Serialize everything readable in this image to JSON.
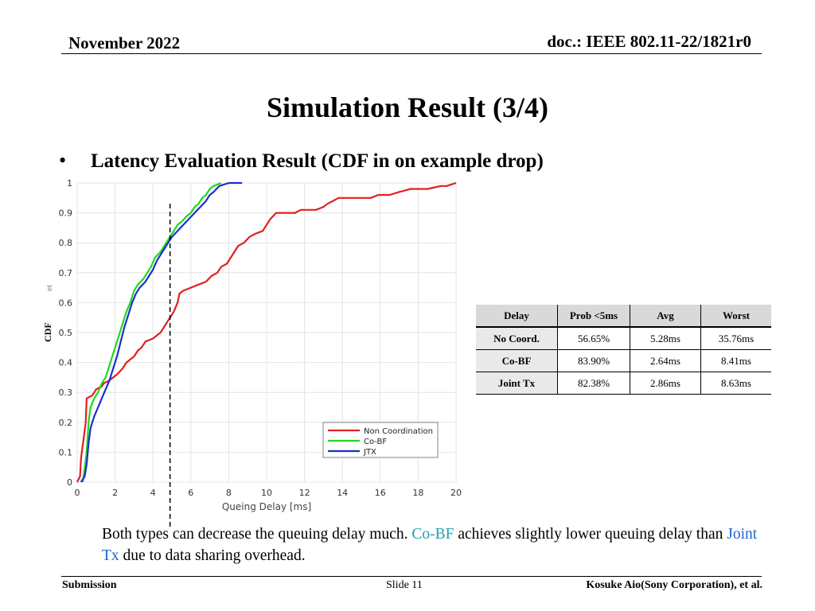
{
  "header": {
    "date": "November 2022",
    "doc": "doc.: IEEE 802.11-22/1821r0"
  },
  "title": "Simulation Result (3/4)",
  "bullet": {
    "marker": "•",
    "text": "Latency Evaluation Result (CDF in on example drop)"
  },
  "chart_data": {
    "type": "line",
    "xlabel": "Queing Delay [ms]",
    "ylabel": "CDF",
    "ylabel_faint": "et",
    "xlim": [
      0,
      20
    ],
    "ylim": [
      0,
      1
    ],
    "xticks": [
      0,
      2,
      4,
      6,
      8,
      10,
      12,
      14,
      16,
      18,
      20
    ],
    "yticks": [
      0,
      0.1,
      0.2,
      0.3,
      0.4,
      0.5,
      0.6,
      0.7,
      0.8,
      0.9,
      1
    ],
    "grid": true,
    "legend_position": "bottom-right",
    "reference_line_x": 4.9,
    "series": [
      {
        "name": "Non Coordination",
        "color": "#e02020",
        "points": [
          [
            0,
            0
          ],
          [
            0.15,
            0.02
          ],
          [
            0.2,
            0.08
          ],
          [
            0.35,
            0.15
          ],
          [
            0.45,
            0.2
          ],
          [
            0.5,
            0.28
          ],
          [
            0.8,
            0.29
          ],
          [
            1,
            0.31
          ],
          [
            1.3,
            0.32
          ],
          [
            1.4,
            0.33
          ],
          [
            1.7,
            0.34
          ],
          [
            1.9,
            0.35
          ],
          [
            2.1,
            0.36
          ],
          [
            2.4,
            0.38
          ],
          [
            2.6,
            0.4
          ],
          [
            3,
            0.42
          ],
          [
            3.2,
            0.44
          ],
          [
            3.4,
            0.45
          ],
          [
            3.6,
            0.47
          ],
          [
            4,
            0.48
          ],
          [
            4.4,
            0.5
          ],
          [
            4.6,
            0.52
          ],
          [
            4.9,
            0.55
          ],
          [
            5.1,
            0.57
          ],
          [
            5.3,
            0.6
          ],
          [
            5.4,
            0.63
          ],
          [
            5.6,
            0.64
          ],
          [
            6,
            0.65
          ],
          [
            6.4,
            0.66
          ],
          [
            6.8,
            0.67
          ],
          [
            7.1,
            0.69
          ],
          [
            7.4,
            0.7
          ],
          [
            7.6,
            0.72
          ],
          [
            7.9,
            0.73
          ],
          [
            8.1,
            0.75
          ],
          [
            8.3,
            0.77
          ],
          [
            8.5,
            0.79
          ],
          [
            8.8,
            0.8
          ],
          [
            9.1,
            0.82
          ],
          [
            9.4,
            0.83
          ],
          [
            9.8,
            0.84
          ],
          [
            10,
            0.86
          ],
          [
            10.2,
            0.88
          ],
          [
            10.5,
            0.9
          ],
          [
            11,
            0.9
          ],
          [
            11.5,
            0.9
          ],
          [
            11.8,
            0.91
          ],
          [
            12.6,
            0.91
          ],
          [
            13,
            0.92
          ],
          [
            13.2,
            0.93
          ],
          [
            13.5,
            0.94
          ],
          [
            13.8,
            0.95
          ],
          [
            15,
            0.95
          ],
          [
            15.5,
            0.95
          ],
          [
            15.9,
            0.96
          ],
          [
            16.5,
            0.96
          ],
          [
            17,
            0.97
          ],
          [
            17.6,
            0.98
          ],
          [
            18.5,
            0.98
          ],
          [
            19.2,
            0.99
          ],
          [
            19.5,
            0.99
          ],
          [
            20,
            1
          ]
        ]
      },
      {
        "name": "Co-BF",
        "color": "#1fd81f",
        "points": [
          [
            0.3,
            0
          ],
          [
            0.4,
            0.05
          ],
          [
            0.5,
            0.1
          ],
          [
            0.6,
            0.2
          ],
          [
            0.7,
            0.25
          ],
          [
            0.9,
            0.28
          ],
          [
            1.1,
            0.3
          ],
          [
            1.3,
            0.33
          ],
          [
            1.5,
            0.35
          ],
          [
            1.6,
            0.37
          ],
          [
            1.8,
            0.41
          ],
          [
            2,
            0.45
          ],
          [
            2.2,
            0.49
          ],
          [
            2.4,
            0.53
          ],
          [
            2.6,
            0.57
          ],
          [
            2.8,
            0.6
          ],
          [
            3,
            0.64
          ],
          [
            3.2,
            0.66
          ],
          [
            3.5,
            0.68
          ],
          [
            3.7,
            0.7
          ],
          [
            3.9,
            0.72
          ],
          [
            4.1,
            0.75
          ],
          [
            4.4,
            0.77
          ],
          [
            4.7,
            0.8
          ],
          [
            4.9,
            0.82
          ],
          [
            5.1,
            0.84
          ],
          [
            5.3,
            0.86
          ],
          [
            5.5,
            0.87
          ],
          [
            5.8,
            0.89
          ],
          [
            6,
            0.9
          ],
          [
            6.2,
            0.92
          ],
          [
            6.4,
            0.93
          ],
          [
            6.6,
            0.95
          ],
          [
            6.8,
            0.96
          ],
          [
            7,
            0.98
          ],
          [
            7.2,
            0.99
          ],
          [
            7.6,
            1
          ]
        ]
      },
      {
        "name": "JTX",
        "color": "#1a2fd0",
        "points": [
          [
            0.2,
            0
          ],
          [
            0.4,
            0.02
          ],
          [
            0.5,
            0.06
          ],
          [
            0.6,
            0.13
          ],
          [
            0.7,
            0.18
          ],
          [
            0.8,
            0.2
          ],
          [
            0.9,
            0.22
          ],
          [
            1.1,
            0.25
          ],
          [
            1.3,
            0.28
          ],
          [
            1.5,
            0.31
          ],
          [
            1.7,
            0.34
          ],
          [
            1.9,
            0.38
          ],
          [
            2.1,
            0.42
          ],
          [
            2.3,
            0.47
          ],
          [
            2.5,
            0.52
          ],
          [
            2.7,
            0.56
          ],
          [
            2.9,
            0.6
          ],
          [
            3.1,
            0.63
          ],
          [
            3.3,
            0.65
          ],
          [
            3.6,
            0.67
          ],
          [
            3.8,
            0.69
          ],
          [
            4,
            0.71
          ],
          [
            4.2,
            0.74
          ],
          [
            4.5,
            0.77
          ],
          [
            4.8,
            0.8
          ],
          [
            5,
            0.82
          ],
          [
            5.3,
            0.84
          ],
          [
            5.6,
            0.86
          ],
          [
            5.9,
            0.88
          ],
          [
            6.2,
            0.9
          ],
          [
            6.5,
            0.92
          ],
          [
            6.8,
            0.94
          ],
          [
            7,
            0.96
          ],
          [
            7.2,
            0.97
          ],
          [
            7.5,
            0.99
          ],
          [
            8,
            1
          ],
          [
            8.7,
            1
          ]
        ]
      }
    ]
  },
  "table": {
    "headers": [
      "Delay",
      "Prob <5ms",
      "Avg",
      "Worst"
    ],
    "rows": [
      [
        "No Coord.",
        "56.65%",
        "5.28ms",
        "35.76ms"
      ],
      [
        "Co-BF",
        "83.90%",
        "2.64ms",
        "8.41ms"
      ],
      [
        "Joint Tx",
        "82.38%",
        "2.86ms",
        "8.63ms"
      ]
    ]
  },
  "caption": {
    "part1": "Both types can decrease the queuing delay much. ",
    "highlight1": "Co-BF",
    "part2": " achieves slightly lower queuing delay than ",
    "highlight2": "Joint Tx",
    "part3": " due to data sharing overhead."
  },
  "colors": {
    "highlight1": "#1f9fb0",
    "highlight2": "#2066d0"
  },
  "footer": {
    "left": "Submission",
    "center": "Slide 11",
    "right": "Kosuke Aio(Sony Corporation), et al."
  }
}
